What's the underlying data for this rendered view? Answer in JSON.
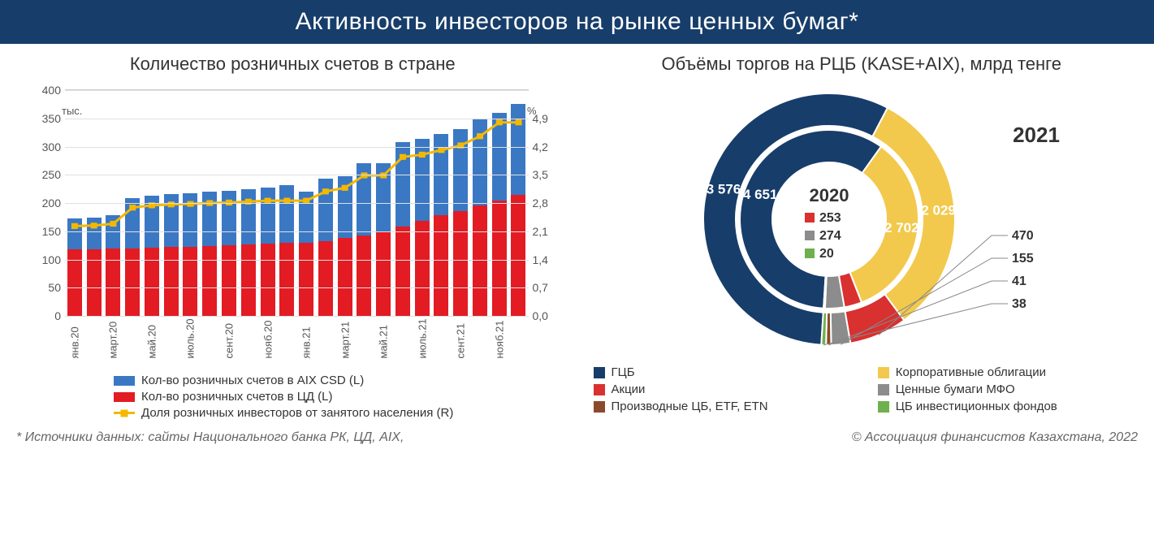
{
  "header_title": "Активность инвесторов на рынке ценных бумаг*",
  "footer_left": "* Источники данных: сайты Национального банка РК, ЦД, AIX,",
  "footer_right": "© Ассоциация финансистов Казахстана, 2022",
  "colors": {
    "header_bg": "#173d6a",
    "blue": "#3a78c4",
    "red": "#e31b23",
    "yellow_line": "#f4b800",
    "navy": "#173d6a",
    "gold": "#f2c94c",
    "red2": "#d93030",
    "grey": "#8c8c8c",
    "brown": "#8b4a2b",
    "green": "#6fb04e"
  },
  "bar_chart": {
    "title": "Количество розничных счетов в стране",
    "y_left": {
      "min": 0,
      "max": 400,
      "step": 50,
      "unit": "тыс."
    },
    "y_right": {
      "min": 0,
      "max": 4.9,
      "step": 0.7,
      "unit": "%",
      "ticks": [
        "0,0",
        "0,7",
        "1,4",
        "2,1",
        "2,8",
        "3,5",
        "4,2",
        "4,9"
      ]
    },
    "categories": [
      "янв.20",
      "",
      "март.20",
      "",
      "май.20",
      "",
      "июль.20",
      "",
      "сент.20",
      "",
      "нояб.20",
      "",
      "янв.21",
      "",
      "март.21",
      "",
      "май.21",
      "",
      "июль.21",
      "",
      "сент.21",
      "",
      "нояб.21",
      ""
    ],
    "series_red": {
      "label": "Кол-во розничных счетов в ЦД (L)",
      "color": "#e31b23",
      "values": [
        118,
        118,
        119,
        120,
        121,
        122,
        123,
        124,
        125,
        126,
        128,
        129,
        130,
        133,
        138,
        143,
        148,
        158,
        168,
        178,
        186,
        195,
        205,
        215
      ]
    },
    "series_blue": {
      "label": "Кол-во розничных счетов в AIX CSD (L)",
      "color": "#3a78c4",
      "values": [
        55,
        56,
        60,
        88,
        92,
        94,
        95,
        96,
        97,
        99,
        100,
        102,
        90,
        110,
        110,
        128,
        123,
        150,
        145,
        145,
        145,
        155,
        155,
        160
      ]
    },
    "series_line": {
      "label": "Доля розничных инвесторов от занятого населения (R)",
      "color": "#f4b800",
      "values": [
        1.95,
        1.96,
        2.0,
        2.35,
        2.4,
        2.42,
        2.43,
        2.45,
        2.46,
        2.48,
        2.5,
        2.5,
        2.5,
        2.7,
        2.78,
        3.05,
        3.05,
        3.45,
        3.5,
        3.6,
        3.7,
        3.9,
        4.2,
        4.2
      ]
    }
  },
  "donut_chart": {
    "title": "Объёмы торгов на РЦБ (KASE+AIX), млрд тенге",
    "inner_year": "2020",
    "outer_year": "2021",
    "inner": [
      {
        "name": "ГЦБ",
        "value": 4651,
        "label": "4 651",
        "color": "#173d6a"
      },
      {
        "name": "Корпоративные облигации",
        "value": 2702,
        "label": "2 702",
        "color": "#f2c94c"
      },
      {
        "name": "Акции",
        "value": 253,
        "label": "253",
        "color": "#d93030"
      },
      {
        "name": "Ценные бумаги МФО",
        "value": 274,
        "label": "274",
        "color": "#8c8c8c"
      },
      {
        "name": "Производные ЦБ, ETF, ETN",
        "value": 0,
        "label": "",
        "color": "#8b4a2b"
      },
      {
        "name": "ЦБ инвестиционных фондов",
        "value": 20,
        "label": "20",
        "color": "#6fb04e"
      }
    ],
    "outer": [
      {
        "name": "ГЦБ",
        "value": 3576,
        "label": "3 576",
        "color": "#173d6a"
      },
      {
        "name": "Корпоративные облигации",
        "value": 2029,
        "label": "2 029",
        "color": "#f2c94c"
      },
      {
        "name": "Акции",
        "value": 470,
        "label": "470",
        "color": "#d93030"
      },
      {
        "name": "Ценные бумаги МФО",
        "value": 155,
        "label": "155",
        "color": "#8c8c8c"
      },
      {
        "name": "Производные ЦБ, ETF, ETN",
        "value": 41,
        "label": "41",
        "color": "#8b4a2b"
      },
      {
        "name": "ЦБ инвестиционных фондов",
        "value": 38,
        "label": "38",
        "color": "#6fb04e"
      }
    ],
    "legend": [
      {
        "label": "ГЦБ",
        "color": "#173d6a"
      },
      {
        "label": "Корпоративные облигации",
        "color": "#f2c94c"
      },
      {
        "label": "Акции",
        "color": "#d93030"
      },
      {
        "label": "Ценные бумаги МФО",
        "color": "#8c8c8c"
      },
      {
        "label": "Производные ЦБ, ETF, ETN",
        "color": "#8b4a2b"
      },
      {
        "label": "ЦБ инвестиционных фондов",
        "color": "#6fb04e"
      }
    ]
  }
}
